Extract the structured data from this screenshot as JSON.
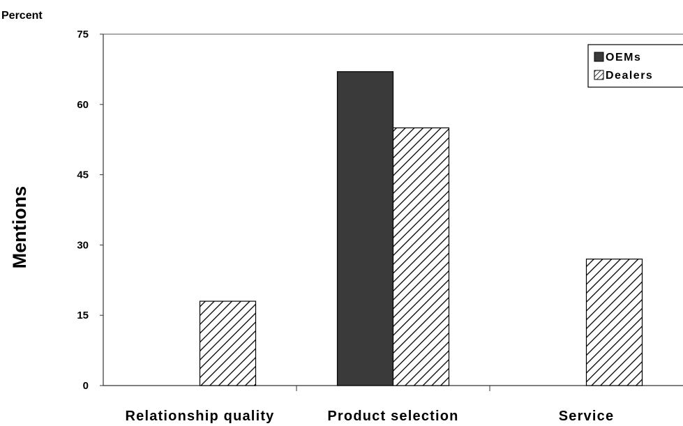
{
  "chart_data": {
    "type": "bar",
    "unit_label": "Percent",
    "ylabel": "Mentions",
    "xlabel": "",
    "ylim": [
      0,
      75
    ],
    "yticks": [
      0,
      15,
      30,
      45,
      60,
      75
    ],
    "grid": false,
    "legend_position": "top-right",
    "categories": [
      "Relationship quality",
      "Product selection",
      "Service"
    ],
    "series": [
      {
        "name": "OEMs",
        "values": [
          0,
          67,
          0
        ],
        "fill": "solid",
        "color": "#3a3a3a"
      },
      {
        "name": "Dealers",
        "values": [
          18,
          55,
          27
        ],
        "fill": "hatch",
        "color": "#000000"
      }
    ]
  }
}
